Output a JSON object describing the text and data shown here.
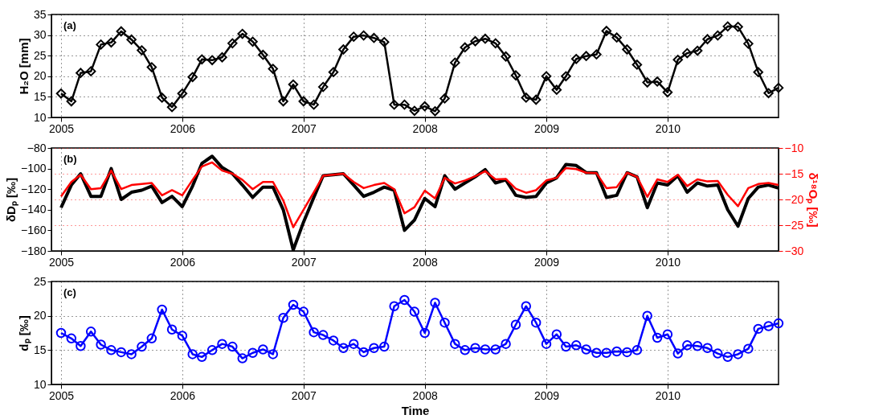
{
  "chart_data": [
    {
      "type": "line",
      "ylabel": "H₂O [mm]",
      "annotations": [
        "(a)"
      ],
      "marker": "diamond",
      "line_style": "solid",
      "grid": true,
      "xlim": [
        "2004-12-03",
        "2010-12-01"
      ],
      "xticks": [
        "2005",
        "2006",
        "2007",
        "2008",
        "2009",
        "2010"
      ],
      "ylim": [
        10,
        35
      ],
      "yticks": [
        10,
        15,
        20,
        25,
        30,
        35
      ],
      "x": [
        "2005-01",
        "2005-02",
        "2005-03",
        "2005-04",
        "2005-05",
        "2005-06",
        "2005-07",
        "2005-08",
        "2005-09",
        "2005-10",
        "2005-11",
        "2005-12",
        "2006-01",
        "2006-02",
        "2006-03",
        "2006-04",
        "2006-05",
        "2006-06",
        "2006-07",
        "2006-08",
        "2006-09",
        "2006-10",
        "2006-11",
        "2006-12",
        "2007-01",
        "2007-02",
        "2007-03",
        "2007-04",
        "2007-05",
        "2007-06",
        "2007-07",
        "2007-08",
        "2007-09",
        "2007-10",
        "2007-11",
        "2007-12",
        "2008-01",
        "2008-02",
        "2008-03",
        "2008-04",
        "2008-05",
        "2008-06",
        "2008-07",
        "2008-08",
        "2008-09",
        "2008-10",
        "2008-11",
        "2008-12",
        "2009-01",
        "2009-02",
        "2009-03",
        "2009-04",
        "2009-05",
        "2009-06",
        "2009-07",
        "2009-08",
        "2009-09",
        "2009-10",
        "2009-11",
        "2009-12",
        "2010-01",
        "2010-02",
        "2010-03",
        "2010-04",
        "2010-05",
        "2010-06",
        "2010-07",
        "2010-08",
        "2010-09",
        "2010-10",
        "2010-11",
        "2010-12"
      ],
      "series": [
        {
          "color": "#000000",
          "values": [
            15.8,
            13.9,
            20.8,
            21.2,
            27.7,
            28.2,
            30.9,
            28.9,
            26.3,
            22.2,
            14.8,
            12.5,
            15.8,
            19.8,
            24.1,
            23.9,
            24.6,
            28.0,
            30.3,
            28.4,
            25.2,
            21.8,
            13.9,
            18.0,
            13.9,
            13.1,
            17.4,
            21.0,
            26.5,
            29.6,
            29.9,
            29.3,
            28.3,
            13.1,
            13.1,
            11.6,
            12.7,
            11.5,
            14.6,
            23.3,
            27.0,
            28.5,
            29.1,
            28.0,
            24.8,
            20.2,
            14.8,
            14.3,
            20.0,
            16.7,
            20.0,
            24.2,
            24.9,
            25.3,
            31.0,
            29.4,
            26.5,
            22.8,
            18.5,
            18.7,
            16.1,
            24.0,
            25.6,
            26.2,
            29.0,
            29.9,
            32.1,
            32.0,
            27.9,
            21.0,
            15.9,
            17.2
          ]
        }
      ]
    },
    {
      "type": "line",
      "ylabel": "δDₚ [‰]",
      "y2label": "δ¹⁸Oₚ [‰]",
      "annotations": [
        "(b)"
      ],
      "marker": "none",
      "line_style": "solid",
      "grid": true,
      "xlim": [
        "2004-12-03",
        "2010-12-01"
      ],
      "xticks": [
        "2005",
        "2006",
        "2007",
        "2008",
        "2009",
        "2010"
      ],
      "ylim": [
        -180,
        -80
      ],
      "yticks": [
        -180,
        -160,
        -140,
        -120,
        -100,
        -80
      ],
      "y2lim": [
        -30,
        -10
      ],
      "y2ticks": [
        -30,
        -25,
        -20,
        -15,
        -10
      ],
      "x": [
        "2005-01",
        "2005-02",
        "2005-03",
        "2005-04",
        "2005-05",
        "2005-06",
        "2005-07",
        "2005-08",
        "2005-09",
        "2005-10",
        "2005-11",
        "2005-12",
        "2006-01",
        "2006-02",
        "2006-03",
        "2006-04",
        "2006-05",
        "2006-06",
        "2006-07",
        "2006-08",
        "2006-09",
        "2006-10",
        "2006-11",
        "2006-12",
        "2007-01",
        "2007-02",
        "2007-03",
        "2007-04",
        "2007-05",
        "2007-06",
        "2007-07",
        "2007-08",
        "2007-09",
        "2007-10",
        "2007-11",
        "2007-12",
        "2008-01",
        "2008-02",
        "2008-03",
        "2008-04",
        "2008-05",
        "2008-06",
        "2008-07",
        "2008-08",
        "2008-09",
        "2008-10",
        "2008-11",
        "2008-12",
        "2009-01",
        "2009-02",
        "2009-03",
        "2009-04",
        "2009-05",
        "2009-06",
        "2009-07",
        "2009-08",
        "2009-09",
        "2009-10",
        "2009-11",
        "2009-12",
        "2010-01",
        "2010-02",
        "2010-03",
        "2010-04",
        "2010-05",
        "2010-06",
        "2010-07",
        "2010-08",
        "2010-09",
        "2010-10",
        "2010-11",
        "2010-12"
      ],
      "series": [
        {
          "color": "#000000",
          "values": [
            -138,
            -116,
            -105,
            -127,
            -127,
            -100,
            -130,
            -123,
            -121,
            -117,
            -133,
            -127,
            -137,
            -117,
            -95,
            -88,
            -99,
            -105,
            -116,
            -128,
            -118,
            -118,
            -140,
            -179,
            -152,
            -128,
            -107,
            -106,
            -105,
            -116,
            -127,
            -123,
            -118,
            -121,
            -160,
            -150,
            -129,
            -137,
            -107,
            -120,
            -114,
            -108,
            -101,
            -114,
            -111,
            -126,
            -128,
            -127,
            -114,
            -109,
            -96,
            -97,
            -104,
            -104,
            -128,
            -126,
            -104,
            -108,
            -138,
            -114,
            -116,
            -107,
            -123,
            -114,
            -117,
            -116,
            -140,
            -156,
            -129,
            -118,
            -116,
            -119
          ]
        },
        {
          "color": "#ff0000",
          "axis": "y2",
          "values": [
            -19.4,
            -16.6,
            -15.2,
            -18.0,
            -17.8,
            -14.4,
            -18.0,
            -17.2,
            -17.0,
            -16.8,
            -19.2,
            -18.2,
            -19.2,
            -16.2,
            -13.6,
            -12.8,
            -14.4,
            -15.0,
            -16.2,
            -18.0,
            -16.6,
            -16.6,
            -20.2,
            -25.4,
            -22.0,
            -18.6,
            -15.4,
            -15.2,
            -15.0,
            -16.6,
            -17.8,
            -17.2,
            -16.8,
            -18.0,
            -22.7,
            -21.5,
            -18.3,
            -19.8,
            -15.8,
            -16.9,
            -16.3,
            -15.5,
            -14.5,
            -16.1,
            -16.0,
            -17.9,
            -18.7,
            -18.2,
            -16.3,
            -15.8,
            -13.9,
            -14.1,
            -14.8,
            -14.9,
            -17.8,
            -17.6,
            -14.8,
            -15.6,
            -19.5,
            -16.1,
            -16.6,
            -15.2,
            -17.4,
            -16.1,
            -16.5,
            -16.4,
            -19.1,
            -21.3,
            -17.8,
            -17.0,
            -16.8,
            -17.2
          ]
        }
      ]
    },
    {
      "type": "line",
      "xlabel": "Time",
      "ylabel": "dₚ [‰]",
      "annotations": [
        "(c)"
      ],
      "marker": "circle",
      "line_style": "solid",
      "grid": true,
      "xlim": [
        "2004-12-03",
        "2010-12-01"
      ],
      "xticks": [
        "2005",
        "2006",
        "2007",
        "2008",
        "2009",
        "2010"
      ],
      "ylim": [
        10,
        25
      ],
      "yticks": [
        10,
        15,
        20,
        25
      ],
      "x": [
        "2005-01",
        "2005-02",
        "2005-03",
        "2005-04",
        "2005-05",
        "2005-06",
        "2005-07",
        "2005-08",
        "2005-09",
        "2005-10",
        "2005-11",
        "2005-12",
        "2006-01",
        "2006-02",
        "2006-03",
        "2006-04",
        "2006-05",
        "2006-06",
        "2006-07",
        "2006-08",
        "2006-09",
        "2006-10",
        "2006-11",
        "2006-12",
        "2007-01",
        "2007-02",
        "2007-03",
        "2007-04",
        "2007-05",
        "2007-06",
        "2007-07",
        "2007-08",
        "2007-09",
        "2007-10",
        "2007-11",
        "2007-12",
        "2008-01",
        "2008-02",
        "2008-03",
        "2008-04",
        "2008-05",
        "2008-06",
        "2008-07",
        "2008-08",
        "2008-09",
        "2008-10",
        "2008-11",
        "2008-12",
        "2009-01",
        "2009-02",
        "2009-03",
        "2009-04",
        "2009-05",
        "2009-06",
        "2009-07",
        "2009-08",
        "2009-09",
        "2009-10",
        "2009-11",
        "2009-12",
        "2010-01",
        "2010-02",
        "2010-03",
        "2010-04",
        "2010-05",
        "2010-06",
        "2010-07",
        "2010-08",
        "2010-09",
        "2010-10",
        "2010-11",
        "2010-12"
      ],
      "series": [
        {
          "color": "#0000ff",
          "values": [
            17.5,
            16.7,
            15.6,
            17.7,
            15.8,
            15.0,
            14.7,
            14.4,
            15.5,
            16.7,
            20.9,
            18.0,
            17.1,
            14.4,
            14.0,
            15.0,
            15.9,
            15.5,
            13.8,
            14.6,
            15.1,
            14.4,
            19.7,
            21.6,
            20.6,
            17.6,
            17.2,
            16.4,
            15.3,
            15.9,
            14.7,
            15.3,
            15.5,
            21.4,
            22.3,
            20.6,
            17.5,
            21.9,
            19.0,
            15.9,
            15.0,
            15.3,
            15.1,
            15.1,
            15.9,
            18.7,
            21.4,
            19.0,
            15.9,
            17.3,
            15.5,
            15.7,
            15.1,
            14.6,
            14.6,
            14.8,
            14.7,
            15.0,
            20.0,
            16.8,
            17.3,
            14.5,
            15.7,
            15.6,
            15.3,
            14.5,
            14.0,
            14.4,
            15.2,
            18.1,
            18.5,
            18.9
          ]
        }
      ]
    }
  ]
}
